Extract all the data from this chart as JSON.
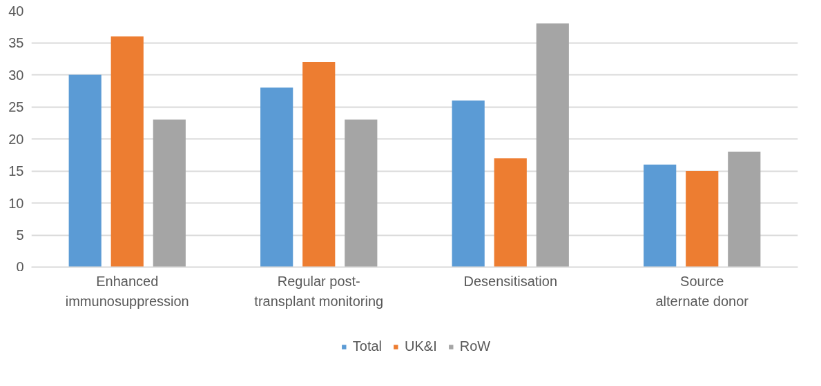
{
  "chart_data": {
    "type": "bar",
    "categories": [
      "Enhanced immunosuppression",
      "Regular post-transplant monitoring",
      "Desensitisation",
      "Source alternate donor"
    ],
    "series": [
      {
        "name": "Total",
        "color": "#5b9bd5",
        "values": [
          30,
          28,
          26,
          16
        ]
      },
      {
        "name": "UK&I",
        "color": "#ed7d31",
        "values": [
          36,
          32,
          17,
          15
        ]
      },
      {
        "name": "RoW",
        "color": "#a5a5a5",
        "values": [
          23,
          23,
          38,
          18
        ]
      }
    ],
    "ylim": [
      0,
      40
    ],
    "yticks": [
      0,
      5,
      10,
      15,
      20,
      25,
      30,
      35,
      40
    ],
    "grid": "y",
    "legend": "bottom"
  }
}
